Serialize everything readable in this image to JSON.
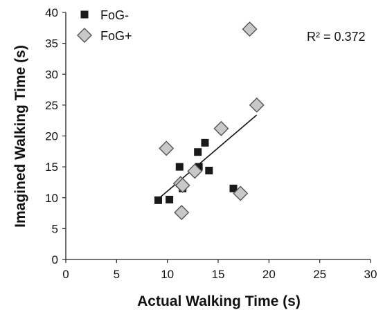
{
  "chart_data": {
    "type": "scatter",
    "title": "",
    "xlabel": "Actual Walking Time (s)",
    "ylabel": "Imagined Walking Time (s)",
    "xlim": [
      0,
      30
    ],
    "ylim": [
      0,
      40
    ],
    "xticks": [
      "0",
      "5",
      "10",
      "15",
      "20",
      "25",
      "30"
    ],
    "yticks": [
      "0",
      "5",
      "10",
      "15",
      "20",
      "25",
      "30",
      "35",
      "40"
    ],
    "grid": false,
    "legend_position": "top-left",
    "annotation": "R² = 0.372",
    "series": [
      {
        "name": "FoG-",
        "marker": "square",
        "color": "#1a1a1a",
        "points": [
          {
            "x": 9.1,
            "y": 9.6
          },
          {
            "x": 10.2,
            "y": 9.7
          },
          {
            "x": 11.2,
            "y": 15.0
          },
          {
            "x": 11.3,
            "y": 12.3
          },
          {
            "x": 11.5,
            "y": 11.5
          },
          {
            "x": 13.0,
            "y": 17.4
          },
          {
            "x": 13.1,
            "y": 15.0
          },
          {
            "x": 13.7,
            "y": 18.9
          },
          {
            "x": 14.1,
            "y": 14.4
          },
          {
            "x": 16.5,
            "y": 11.5
          }
        ]
      },
      {
        "name": "FoG+",
        "marker": "diamond",
        "color": "#c8c8c8",
        "points": [
          {
            "x": 9.9,
            "y": 18.0
          },
          {
            "x": 11.3,
            "y": 12.3
          },
          {
            "x": 11.4,
            "y": 7.6
          },
          {
            "x": 11.5,
            "y": 12.0
          },
          {
            "x": 12.7,
            "y": 14.3
          },
          {
            "x": 15.3,
            "y": 21.2
          },
          {
            "x": 17.2,
            "y": 10.7
          },
          {
            "x": 18.1,
            "y": 37.3
          },
          {
            "x": 18.8,
            "y": 25.0
          }
        ]
      }
    ],
    "trendline": {
      "x": [
        9.1,
        18.8
      ],
      "y": [
        9.8,
        23.4
      ]
    }
  }
}
